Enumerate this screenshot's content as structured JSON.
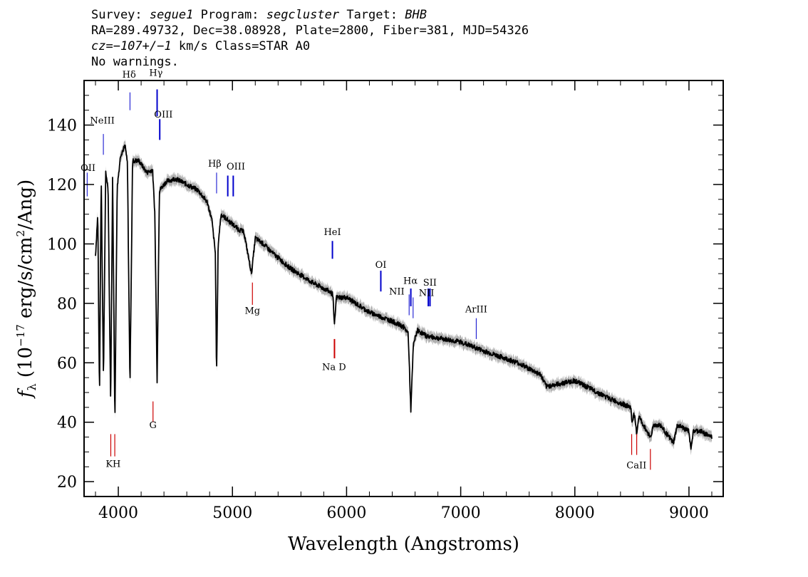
{
  "header": {
    "survey_label": "Survey:",
    "survey": "segue1",
    "program_label": "Program:",
    "program": "segcluster",
    "target_label": "Target:",
    "target": "BHB",
    "line2": "RA=289.49732, Dec=38.08928, Plate=2800, Fiber=381, MJD=54326",
    "cz": "cz=−107+/−1",
    "cz_rest": " km/s Class=STAR A0",
    "warnings": "No warnings."
  },
  "chart_data": {
    "type": "line",
    "xlabel": "Wavelength (Angstroms)",
    "ylabel": "f_λ (10^-17 erg/s/cm^2/Ang)",
    "xlim": [
      3700,
      9300
    ],
    "ylim": [
      15,
      155
    ],
    "x_ticks": [
      4000,
      5000,
      6000,
      7000,
      8000,
      9000
    ],
    "y_ticks": [
      20,
      40,
      60,
      80,
      100,
      120,
      140
    ],
    "grid": false,
    "colors": {
      "spectrum": "#000000",
      "error": "#b0b0b0",
      "emission": "#0000cc",
      "absorption": "#cc0000"
    },
    "series": [
      {
        "x": [
          3800,
          3820,
          3835,
          3850,
          3870,
          3889,
          3910,
          3933,
          3950,
          3970,
          3990,
          4020,
          4060,
          4080,
          4102,
          4125,
          4180,
          4250,
          4300,
          4320,
          4340,
          4360,
          4420,
          4500,
          4600,
          4700,
          4780,
          4820,
          4850,
          4861,
          4875,
          4900,
          4960,
          5050,
          5100,
          5167,
          5200,
          5270,
          5350,
          5500,
          5700,
          5850,
          5880,
          5893,
          5910,
          6000,
          6200,
          6400,
          6500,
          6540,
          6563,
          6585,
          6620,
          6700,
          7000,
          7200,
          7500,
          7700,
          7750,
          8000,
          8300,
          8490,
          8500,
          8520,
          8542,
          8560,
          8600,
          8662,
          8690,
          8750,
          8863,
          8900,
          9000,
          9015,
          9040,
          9100,
          9200
        ],
        "y": [
          96,
          110,
          48,
          123,
          54,
          124,
          119,
          46,
          123,
          40,
          119,
          130,
          133,
          127,
          52,
          128,
          128,
          124,
          125,
          110,
          54,
          118,
          121,
          122,
          120,
          118,
          114,
          108,
          97,
          55,
          100,
          110,
          108,
          105,
          104,
          90,
          102,
          100,
          97,
          92,
          87,
          84,
          83,
          72,
          82,
          82,
          77,
          74,
          72,
          70,
          44,
          66,
          71,
          69,
          67,
          64,
          60,
          56,
          52,
          54,
          48,
          45,
          40,
          43,
          36,
          42,
          39,
          35,
          39,
          39,
          33,
          39,
          37,
          31,
          37,
          37,
          35
        ]
      }
    ],
    "emission_lines": [
      {
        "label": "OII",
        "x": 3727
      },
      {
        "label": "NeIII",
        "x": 3869
      },
      {
        "label": "Hδ",
        "x": 4102
      },
      {
        "label": "Hγ",
        "x": 4340
      },
      {
        "label": "OIII",
        "x": 4363
      },
      {
        "label": "Hβ",
        "x": 4861
      },
      {
        "label": "OIII",
        "x": 4959
      },
      {
        "label": "OIII",
        "x": 5007
      },
      {
        "label": "HeI",
        "x": 5876
      },
      {
        "label": "OI",
        "x": 6300
      },
      {
        "label": "NII",
        "x": 6548
      },
      {
        "label": "Hα",
        "x": 6563
      },
      {
        "label": "NII",
        "x": 6583
      },
      {
        "label": "SII",
        "x": 6716
      },
      {
        "label": "SII",
        "x": 6731
      },
      {
        "label": "ArIII",
        "x": 7136
      }
    ],
    "absorption_lines": [
      {
        "label": "K",
        "x": 3934
      },
      {
        "label": "H",
        "x": 3969
      },
      {
        "label": "G",
        "x": 4304
      },
      {
        "label": "Mg",
        "x": 5175
      },
      {
        "label": "Na D",
        "x": 5894
      },
      {
        "label": "CaII",
        "x": 8498
      },
      {
        "label": "CaII",
        "x": 8542
      },
      {
        "label": "CaII",
        "x": 8662
      }
    ],
    "labels": {
      "OII": "OII",
      "NeIII": "NeIII",
      "Hdelta": "Hδ",
      "Hgamma": "Hγ",
      "OIII": "OIII",
      "Hbeta": "Hβ",
      "HeI": "HeI",
      "OI": "OI",
      "NII": "NII",
      "Halpha": "Hα",
      "SII": "SII",
      "ArIII": "ArIII",
      "KH": "KH",
      "G": "G",
      "Mg": "Mg",
      "NaD": "Na D",
      "CaII": "CaII"
    }
  }
}
